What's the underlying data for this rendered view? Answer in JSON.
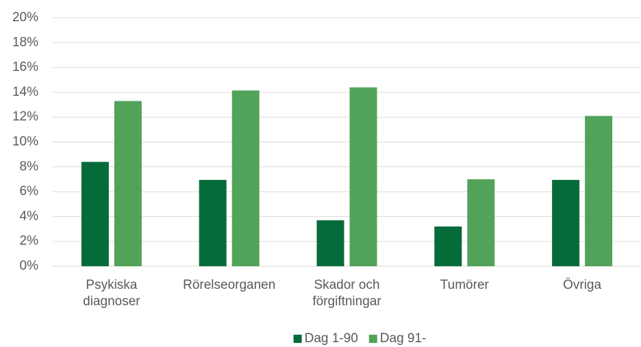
{
  "chart_data": {
    "type": "bar",
    "categories": [
      "Psykiska\ndiagnoser",
      "Rörelseorganen",
      "Skador och\nförgiftningar",
      "Tumörer",
      "Övriga"
    ],
    "series": [
      {
        "name": "Dag 1-90",
        "color": "#066b3a",
        "values": [
          8.4,
          6.95,
          3.7,
          3.2,
          6.95
        ]
      },
      {
        "name": "Dag 91-",
        "color": "#52a35a",
        "values": [
          13.3,
          14.15,
          14.4,
          7.0,
          12.1
        ]
      }
    ],
    "ylim": [
      0,
      20
    ],
    "yticks": [
      {
        "value": 0,
        "label": "0%"
      },
      {
        "value": 2,
        "label": "2%"
      },
      {
        "value": 4,
        "label": "4%"
      },
      {
        "value": 6,
        "label": "6%"
      },
      {
        "value": 8,
        "label": "8%"
      },
      {
        "value": 10,
        "label": "10%"
      },
      {
        "value": 12,
        "label": "12%"
      },
      {
        "value": 14,
        "label": "14%"
      },
      {
        "value": 16,
        "label": "16%"
      },
      {
        "value": 18,
        "label": "18%"
      },
      {
        "value": 20,
        "label": "20%"
      }
    ],
    "grid": true,
    "legend": "bottom"
  }
}
